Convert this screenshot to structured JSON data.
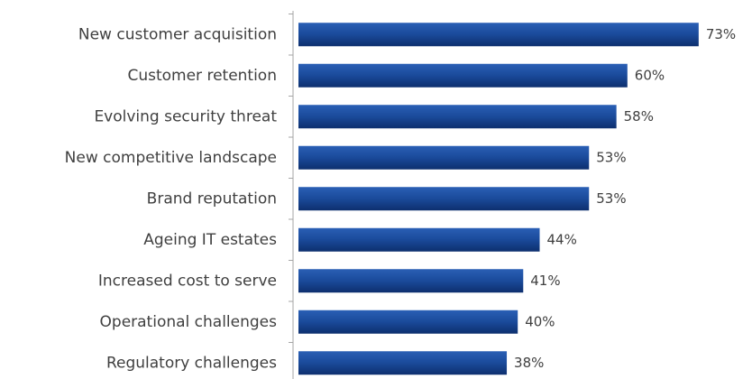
{
  "chart_data": {
    "type": "bar",
    "orientation": "horizontal",
    "categories": [
      "New customer acquisition",
      "Customer retention",
      "Evolving security threat",
      "New competitive landscape",
      "Brand reputation",
      "Ageing IT estates",
      "Increased cost to serve",
      "Operational challenges",
      "Regulatory challenges"
    ],
    "values": [
      73,
      60,
      58,
      53,
      53,
      44,
      41,
      40,
      38
    ],
    "value_labels": [
      "73%",
      "60%",
      "58%",
      "53%",
      "53%",
      "44%",
      "41%",
      "40%",
      "38%"
    ],
    "color": "#1a4a9a"
  }
}
